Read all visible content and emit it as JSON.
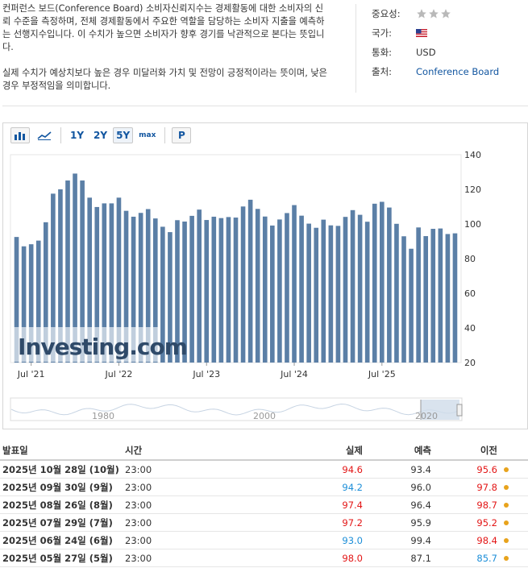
{
  "description": {
    "p1": "컨퍼런스 보드(Conference Board) 소비자신뢰지수는 경제활동에 대한 소비자의 신뢰 수준을 측정하며, 전체 경제활동에서 주요한 역할을 담당하는 소비자 지출을 예측하는 선행지수입니다. 이 수치가 높으면 소비자가 향후 경기를 낙관적으로 본다는 뜻입니다.",
    "p2": "실제 수치가 예상치보다 높은 경우 미달러화 가치 및 전망이 긍정적이라는 뜻이며, 낮은 경우 부정적임을 의미합니다."
  },
  "meta": {
    "importance_label": "중요성:",
    "importance_stars": 3,
    "country_label": "국가:",
    "country_icon": "us-flag-icon",
    "currency_label": "통화:",
    "currency_value": "USD",
    "source_label": "출처:",
    "source_value": "Conference Board"
  },
  "toolbar": {
    "bar_icon": "bar-chart-icon",
    "line_icon": "line-chart-icon",
    "ranges": [
      "1Y",
      "2Y",
      "5Y",
      "max"
    ],
    "active_range": "5Y",
    "p_label": "P"
  },
  "chart_data": {
    "type": "bar",
    "color": "#5b7fa6",
    "watermark": "Investing.com",
    "yticks": [
      20,
      40,
      60,
      80,
      100,
      120,
      140
    ],
    "ylim": [
      20,
      140
    ],
    "xticks": [
      "Jul '21",
      "Jul '22",
      "Jul '23",
      "Jul '24",
      "Jul '25"
    ],
    "values": [
      92.5,
      87.1,
      88.3,
      90.4,
      101.0,
      117.5,
      120.0,
      125.1,
      129.1,
      125.1,
      115.2,
      109.8,
      111.9,
      111.9,
      115.2,
      107.6,
      104.2,
      106.4,
      108.6,
      103.2,
      98.4,
      95.3,
      102.2,
      101.4,
      104.7,
      108.3,
      102.3,
      104.2,
      103.4,
      104.0,
      103.7,
      110.1,
      114.0,
      108.7,
      104.3,
      99.1,
      102.6,
      106.3,
      110.9,
      104.8,
      100.2,
      97.8,
      102.5,
      99.2,
      98.9,
      104.1,
      108.0,
      105.3,
      101.3,
      111.7,
      112.8,
      109.5,
      100.1,
      92.9,
      85.7,
      98.0,
      93.0,
      97.2,
      97.4,
      94.2,
      94.6
    ],
    "navigator_labels": [
      "1980",
      "2000",
      "2020"
    ]
  },
  "table": {
    "headers": {
      "date": "발표일",
      "time": "시간",
      "actual": "실제",
      "forecast": "예측",
      "previous": "이전"
    },
    "rows": [
      {
        "date": "2025년 10월 28일 (10월)",
        "time": "23:00",
        "actual": "94.6",
        "actual_color": "red",
        "forecast": "93.4",
        "previous": "95.6",
        "previous_color": "red"
      },
      {
        "date": "2025년 09월 30일 (9월)",
        "time": "23:00",
        "actual": "94.2",
        "actual_color": "blue",
        "forecast": "96.0",
        "previous": "97.8",
        "previous_color": "red"
      },
      {
        "date": "2025년 08월 26일 (8월)",
        "time": "23:00",
        "actual": "97.4",
        "actual_color": "red",
        "forecast": "96.4",
        "previous": "98.7",
        "previous_color": "red"
      },
      {
        "date": "2025년 07월 29일 (7월)",
        "time": "23:00",
        "actual": "97.2",
        "actual_color": "red",
        "forecast": "95.9",
        "previous": "95.2",
        "previous_color": "red"
      },
      {
        "date": "2025년 06월 24일 (6월)",
        "time": "23:00",
        "actual": "93.0",
        "actual_color": "blue",
        "forecast": "99.4",
        "previous": "98.4",
        "previous_color": "red"
      },
      {
        "date": "2025년 05월 27일 (5월)",
        "time": "23:00",
        "actual": "98.0",
        "actual_color": "red",
        "forecast": "87.1",
        "previous": "85.7",
        "previous_color": "blue"
      }
    ]
  }
}
